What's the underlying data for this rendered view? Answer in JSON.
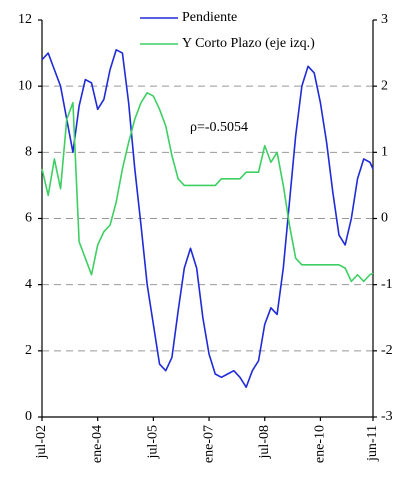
{
  "chart_data": {
    "type": "line",
    "annotation": "ρ=-0.5054",
    "x": [
      0,
      2,
      4,
      6,
      8,
      10,
      12,
      14,
      16,
      18,
      20,
      22,
      24,
      26,
      28,
      30,
      32,
      34,
      36,
      38,
      40,
      42,
      44,
      46,
      48,
      50,
      52,
      54,
      56,
      58,
      60,
      62,
      64,
      66,
      68,
      70,
      72,
      74,
      76,
      78,
      80,
      82,
      84,
      86,
      88,
      90,
      92,
      94,
      96,
      98,
      100,
      102,
      104,
      106,
      107
    ],
    "xlim": [
      0,
      107
    ],
    "xticks": [
      {
        "value": 0,
        "label": "jul-02"
      },
      {
        "value": 18,
        "label": "ene-04"
      },
      {
        "value": 36,
        "label": "jul-05"
      },
      {
        "value": 54,
        "label": "ene-07"
      },
      {
        "value": 72,
        "label": "jul-08"
      },
      {
        "value": 90,
        "label": "ene-10"
      },
      {
        "value": 107,
        "label": "jun-11"
      }
    ],
    "ylim": [
      0,
      12
    ],
    "yticks": [
      0,
      2,
      4,
      6,
      8,
      10,
      12
    ],
    "y2lim": [
      -3,
      3
    ],
    "y2ticks": [
      -3,
      -2,
      -1,
      0,
      1,
      2,
      3
    ],
    "grid": true,
    "series": [
      {
        "name": "Pendiente",
        "color": "#1f2bd6",
        "axis": "y2",
        "values": [
          2.4,
          2.5,
          2.25,
          2.0,
          1.5,
          1.0,
          1.7,
          2.1,
          2.05,
          1.65,
          1.8,
          2.25,
          2.55,
          2.5,
          1.75,
          0.75,
          -0.1,
          -1.0,
          -1.6,
          -2.2,
          -2.3,
          -2.1,
          -1.4,
          -0.75,
          -0.45,
          -0.75,
          -1.5,
          -2.05,
          -2.35,
          -2.4,
          -2.35,
          -2.3,
          -2.4,
          -2.55,
          -2.3,
          -2.15,
          -1.6,
          -1.35,
          -1.45,
          -0.75,
          0.25,
          1.25,
          2.0,
          2.3,
          2.2,
          1.75,
          1.15,
          0.4,
          -0.25,
          -0.4,
          0,
          0.6,
          0.9,
          0.85,
          0.75
        ]
      },
      {
        "name": "Y Corto Plazo (eje izq.)",
        "color": "#3ecf63",
        "values": [
          7.5,
          6.7,
          7.8,
          6.9,
          9.0,
          9.5,
          5.3,
          4.8,
          4.3,
          5.2,
          5.6,
          5.8,
          6.5,
          7.5,
          8.3,
          9.0,
          9.5,
          9.8,
          9.7,
          9.3,
          8.8,
          7.9,
          7.2,
          7.0,
          7.0,
          7.0,
          7.0,
          7.0,
          7.0,
          7.2,
          7.2,
          7.2,
          7.2,
          7.4,
          7.4,
          7.4,
          8.2,
          7.7,
          8.0,
          7.0,
          5.8,
          4.8,
          4.6,
          4.6,
          4.6,
          4.6,
          4.6,
          4.6,
          4.6,
          4.5,
          4.1,
          4.3,
          4.1,
          4.3,
          4.35
        ]
      }
    ]
  }
}
